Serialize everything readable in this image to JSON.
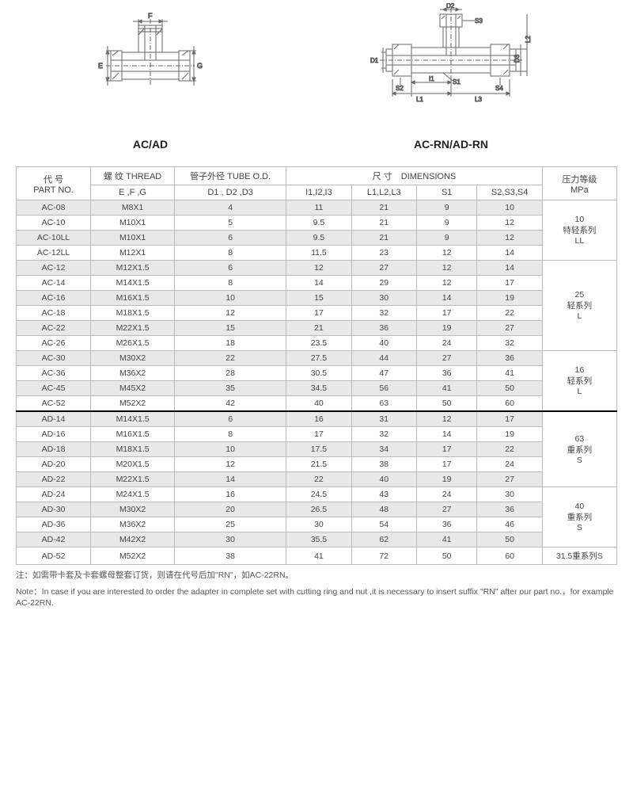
{
  "titles": {
    "left": "AC/AD",
    "right": "AC-RN/AD-RN"
  },
  "headers": {
    "partNo": "代 号\nPART NO.",
    "thread": "螺 纹 THREAD",
    "threadSub": "E ,F ,G",
    "tube": "管子外径 TUBE O.D.",
    "tubeSub": "D1 , D2 ,D3",
    "dims": "尺 寸　DIMENSIONS",
    "i": "I1,I2,I3",
    "l": "L1,L2,L3",
    "s1": "S1",
    "s2": "S2,S3,S4",
    "pressure": "压力等级\nMPa"
  },
  "groups": [
    {
      "pressure": "10\n特轻系列\nLL",
      "rows": [
        {
          "p": "AC-08",
          "t": "M8X1",
          "d": "4",
          "i": "11",
          "l": "21",
          "s1": "9",
          "s2": "10",
          "alt": true
        },
        {
          "p": "AC-10",
          "t": "M10X1",
          "d": "5",
          "i": "9.5",
          "l": "21",
          "s1": "9",
          "s2": "12",
          "alt": false
        },
        {
          "p": "AC-10LL",
          "t": "M10X1",
          "d": "6",
          "i": "9.5",
          "l": "21",
          "s1": "9",
          "s2": "12",
          "alt": true
        },
        {
          "p": "AC-12LL",
          "t": "M12X1",
          "d": "8",
          "i": "11.5",
          "l": "23",
          "s1": "12",
          "s2": "14",
          "alt": false
        }
      ]
    },
    {
      "pressure": "25\n轻系列\nL",
      "rows": [
        {
          "p": "AC-12",
          "t": "M12X1.5",
          "d": "6",
          "i": "12",
          "l": "27",
          "s1": "12",
          "s2": "14",
          "alt": true
        },
        {
          "p": "AC-14",
          "t": "M14X1.5",
          "d": "8",
          "i": "14",
          "l": "29",
          "s1": "12",
          "s2": "17",
          "alt": false
        },
        {
          "p": "AC-16",
          "t": "M16X1.5",
          "d": "10",
          "i": "15",
          "l": "30",
          "s1": "14",
          "s2": "19",
          "alt": true
        },
        {
          "p": "AC-18",
          "t": "M18X1.5",
          "d": "12",
          "i": "17",
          "l": "32",
          "s1": "17",
          "s2": "22",
          "alt": false
        },
        {
          "p": "AC-22",
          "t": "M22X1.5",
          "d": "15",
          "i": "21",
          "l": "36",
          "s1": "19",
          "s2": "27",
          "alt": true
        },
        {
          "p": "AC-26",
          "t": "M26X1.5",
          "d": "18",
          "i": "23.5",
          "l": "40",
          "s1": "24",
          "s2": "32",
          "alt": false
        }
      ]
    },
    {
      "pressure": "16\n轻系列\nL",
      "rows": [
        {
          "p": "AC-30",
          "t": "M30X2",
          "d": "22",
          "i": "27.5",
          "l": "44",
          "s1": "27",
          "s2": "36",
          "alt": true
        },
        {
          "p": "AC-36",
          "t": "M36X2",
          "d": "28",
          "i": "30.5",
          "l": "47",
          "s1": "36",
          "s2": "41",
          "alt": false
        },
        {
          "p": "AC-45",
          "t": "M45X2",
          "d": "35",
          "i": "34.5",
          "l": "56",
          "s1": "41",
          "s2": "50",
          "alt": true
        },
        {
          "p": "AC-52",
          "t": "M52X2",
          "d": "42",
          "i": "40",
          "l": "63",
          "s1": "50",
          "s2": "60",
          "alt": false
        }
      ]
    },
    {
      "pressure": "63\n重系列\nS",
      "divider": true,
      "rows": [
        {
          "p": "AD-14",
          "t": "M14X1.5",
          "d": "6",
          "i": "16",
          "l": "31",
          "s1": "12",
          "s2": "17",
          "alt": true
        },
        {
          "p": "AD-16",
          "t": "M16X1.5",
          "d": "8",
          "i": "17",
          "l": "32",
          "s1": "14",
          "s2": "19",
          "alt": false
        },
        {
          "p": "AD-18",
          "t": "M18X1.5",
          "d": "10",
          "i": "17.5",
          "l": "34",
          "s1": "17",
          "s2": "22",
          "alt": true
        },
        {
          "p": "AD-20",
          "t": "M20X1.5",
          "d": "12",
          "i": "21.5",
          "l": "38",
          "s1": "17",
          "s2": "24",
          "alt": false
        },
        {
          "p": "AD-22",
          "t": "M22X1.5",
          "d": "14",
          "i": "22",
          "l": "40",
          "s1": "19",
          "s2": "27",
          "alt": true
        }
      ]
    },
    {
      "pressure": "40\n重系列\nS",
      "rows": [
        {
          "p": "AD-24",
          "t": "M24X1.5",
          "d": "16",
          "i": "24.5",
          "l": "43",
          "s1": "24",
          "s2": "30",
          "alt": false
        },
        {
          "p": "AD-30",
          "t": "M30X2",
          "d": "20",
          "i": "26.5",
          "l": "48",
          "s1": "27",
          "s2": "36",
          "alt": true
        },
        {
          "p": "AD-36",
          "t": "M36X2",
          "d": "25",
          "i": "30",
          "l": "54",
          "s1": "36",
          "s2": "46",
          "alt": false
        },
        {
          "p": "AD-42",
          "t": "M42X2",
          "d": "30",
          "i": "35.5",
          "l": "62",
          "s1": "41",
          "s2": "50",
          "alt": true
        }
      ]
    },
    {
      "pressure": "31.5重系列S",
      "single": true,
      "rows": [
        {
          "p": "AD-52",
          "t": "M52X2",
          "d": "38",
          "i": "41",
          "l": "72",
          "s1": "50",
          "s2": "60",
          "alt": false
        }
      ]
    }
  ],
  "notes": {
    "cn": "注：如需带卡套及卡套螺母整套订货，则请在代号后加\"RN\"，如AC-22RN。",
    "en": "Note：In case if you are interested to order the adapter in complete set with cutting ring and nut ,it is necessary to insert suffix \"RN\" after our part no.，for example AC-22RN."
  },
  "diagramLabels": {
    "left": {
      "F": "F",
      "E": "E",
      "G": "G"
    },
    "right": {
      "D1": "D1",
      "D2": "D2",
      "D3": "D3",
      "S1": "S1",
      "S2": "S2",
      "S3": "S3",
      "S4": "S4",
      "I1": "I1",
      "L1": "L1",
      "L2": "L2",
      "L3": "L3"
    }
  }
}
